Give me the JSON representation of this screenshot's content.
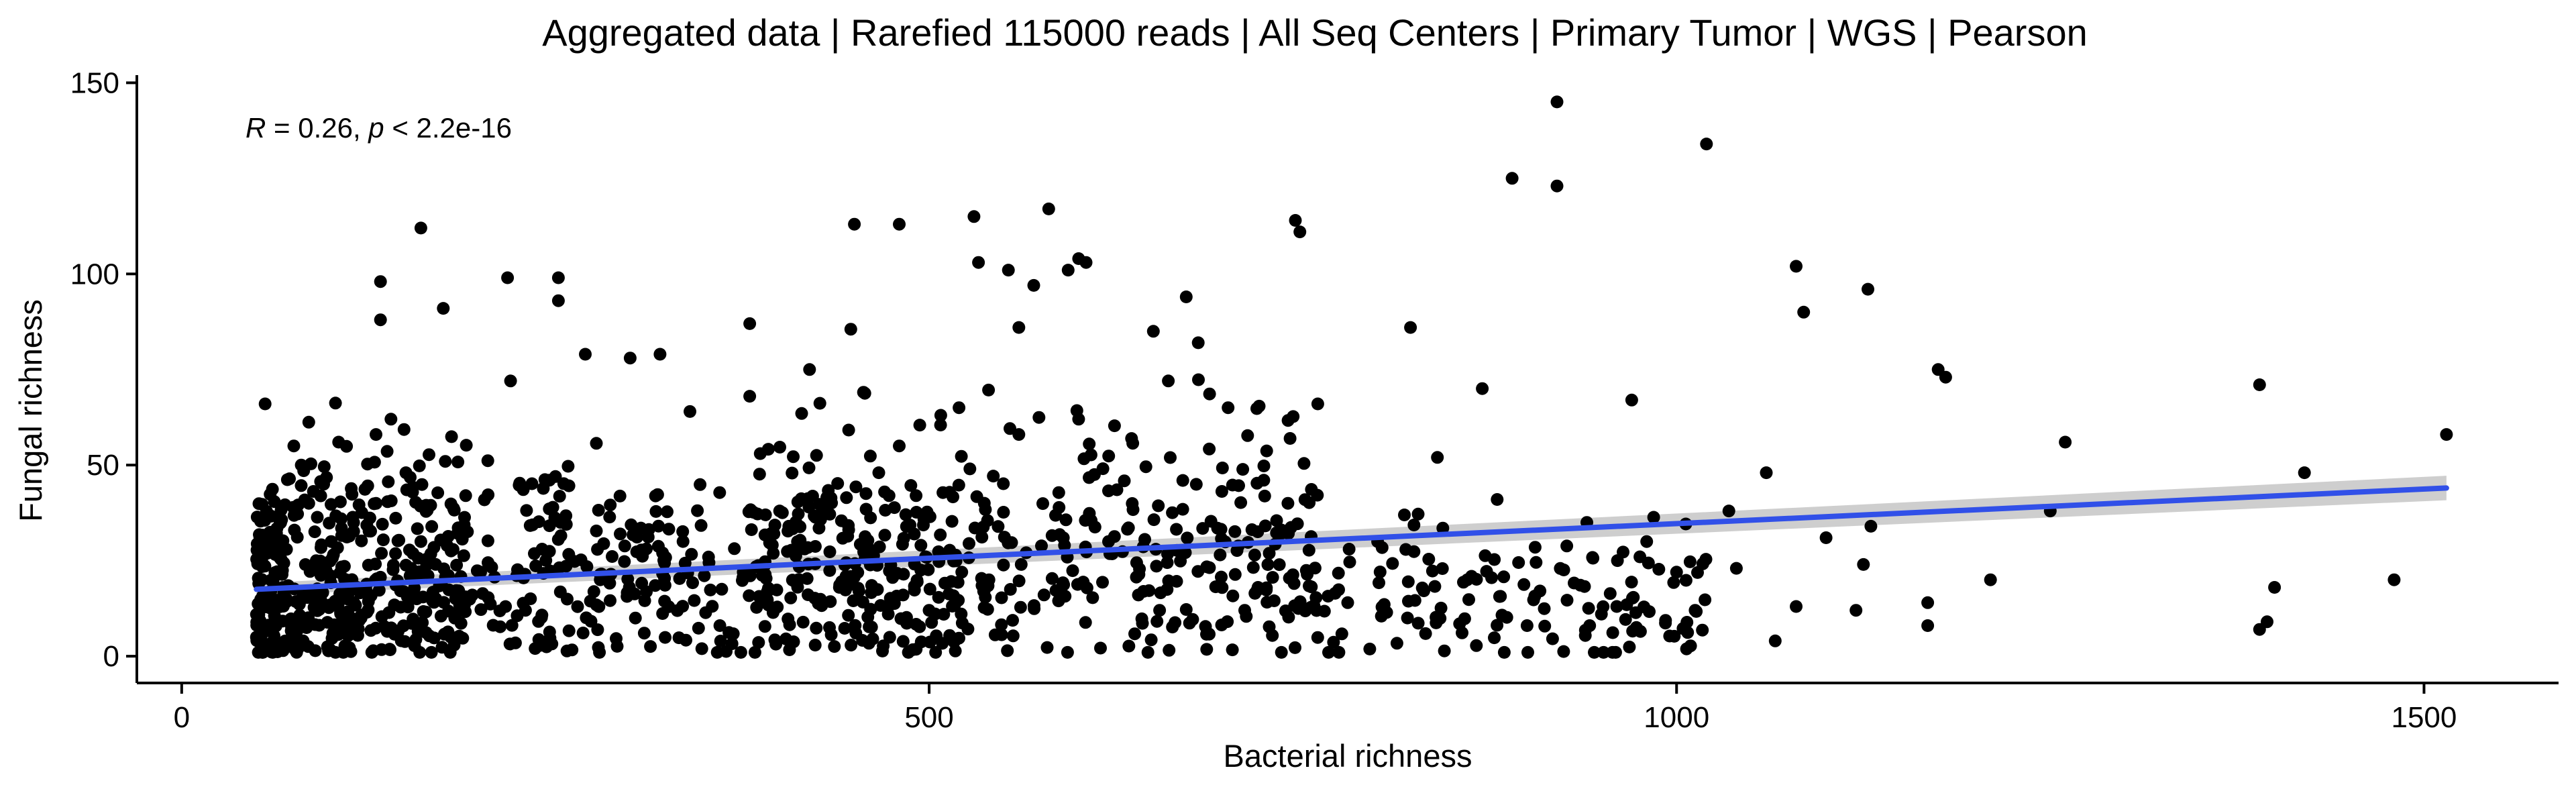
{
  "chart_data": {
    "type": "scatter",
    "title": "Aggregated data | Rarefied 115000 reads | All Seq Centers | Primary Tumor | WGS | Pearson",
    "xlabel": "Bacterial richness",
    "ylabel": "Fungal richness",
    "xlim": [
      -30,
      1590
    ],
    "ylim": [
      -7,
      152
    ],
    "x_ticks": [
      0,
      500,
      1000,
      1500
    ],
    "y_ticks": [
      0,
      50,
      100,
      150
    ],
    "x_tick_labels": [
      "0",
      "500",
      "1000",
      "1500"
    ],
    "y_tick_labels": [
      "0",
      "50",
      "100",
      "150"
    ],
    "grid": false,
    "legend": "none",
    "annotation": {
      "r_symbol": "R",
      "r_text": " = 0.26, ",
      "p_symbol": "p",
      "p_text": " < 2.2e-16"
    },
    "colors": {
      "points": "#000000",
      "fit_line": "#3150e8",
      "confidence_band": "#bdbdbd"
    },
    "fit": {
      "x": [
        50,
        1515
      ],
      "y": [
        17.5,
        44
      ],
      "ci_halfwidth_start": 1.6,
      "ci_halfwidth_end": 3.2
    },
    "points_notable": [
      [
        920,
        145
      ],
      [
        1020,
        134
      ],
      [
        890,
        125
      ],
      [
        920,
        123
      ],
      [
        580,
        117
      ],
      [
        530,
        115
      ],
      [
        450,
        113
      ],
      [
        480,
        113
      ],
      [
        160,
        112
      ],
      [
        745,
        114
      ],
      [
        748,
        111
      ],
      [
        600,
        104
      ],
      [
        605,
        103
      ],
      [
        533,
        103
      ],
      [
        553,
        101
      ],
      [
        593,
        101
      ],
      [
        1080,
        102
      ],
      [
        1085,
        90
      ],
      [
        1128,
        96
      ],
      [
        218,
        99
      ],
      [
        252,
        99
      ],
      [
        252,
        93
      ],
      [
        133,
        98
      ],
      [
        133,
        88
      ],
      [
        570,
        97
      ],
      [
        672,
        94
      ],
      [
        175,
        91
      ],
      [
        560,
        86
      ],
      [
        650,
        85
      ],
      [
        822,
        86
      ],
      [
        380,
        87
      ],
      [
        870,
        70
      ],
      [
        970,
        67
      ],
      [
        1390,
        71
      ],
      [
        1175,
        75
      ],
      [
        1180,
        73
      ],
      [
        1260,
        56
      ],
      [
        1515,
        58
      ],
      [
        1420,
        48
      ],
      [
        1060,
        48
      ],
      [
        1035,
        38
      ],
      [
        1250,
        38
      ],
      [
        1210,
        20
      ],
      [
        1480,
        20
      ],
      [
        1390,
        7
      ],
      [
        1395,
        9
      ],
      [
        1400,
        18
      ],
      [
        1168,
        14
      ],
      [
        1168,
        8
      ],
      [
        1130,
        34
      ],
      [
        1125,
        24
      ],
      [
        1120,
        12
      ],
      [
        1066,
        4
      ],
      [
        1080,
        13
      ],
      [
        50,
        5
      ],
      [
        55,
        3
      ],
      [
        60,
        8
      ],
      [
        70,
        15
      ],
      [
        75,
        55
      ],
      [
        80,
        50
      ],
      [
        85,
        40
      ],
      [
        90,
        25
      ],
      [
        95,
        45
      ],
      [
        100,
        30
      ],
      [
        105,
        56
      ],
      [
        110,
        20
      ],
      [
        115,
        35
      ],
      [
        120,
        10
      ],
      [
        130,
        58
      ],
      [
        140,
        62
      ],
      [
        150,
        48
      ],
      [
        160,
        30
      ],
      [
        170,
        15
      ],
      [
        180,
        5
      ],
      [
        190,
        42
      ],
      [
        200,
        22
      ],
      [
        220,
        72
      ],
      [
        230,
        12
      ],
      [
        250,
        47
      ],
      [
        270,
        79
      ],
      [
        280,
        20
      ],
      [
        300,
        78
      ],
      [
        320,
        79
      ],
      [
        340,
        64
      ],
      [
        360,
        8
      ],
      [
        380,
        68
      ],
      [
        400,
        38
      ],
      [
        420,
        75
      ],
      [
        440,
        18
      ],
      [
        460,
        28
      ],
      [
        480,
        55
      ],
      [
        500,
        12
      ],
      [
        520,
        65
      ],
      [
        540,
        20
      ],
      [
        560,
        58
      ],
      [
        600,
        62
      ],
      [
        620,
        30
      ],
      [
        640,
        16
      ],
      [
        660,
        72
      ],
      [
        680,
        82
      ],
      [
        700,
        65
      ],
      [
        720,
        18
      ],
      [
        740,
        40
      ],
      [
        760,
        66
      ],
      [
        780,
        14
      ],
      [
        800,
        30
      ],
      [
        820,
        10
      ],
      [
        840,
        52
      ],
      [
        860,
        20
      ],
      [
        880,
        41
      ],
      [
        900,
        8
      ],
      [
        940,
        35
      ],
      [
        960,
        13
      ],
      [
        980,
        30
      ],
      [
        1000,
        22
      ],
      [
        1040,
        23
      ],
      [
        1100,
        31
      ]
    ]
  }
}
